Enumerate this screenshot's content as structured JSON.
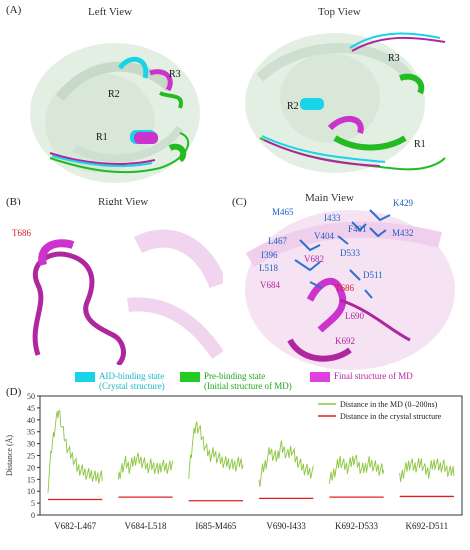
{
  "panels": {
    "A": {
      "letter": "(A)",
      "left_title": "Left View",
      "top_title": "Top View",
      "left_regions": [
        "R3",
        "R2",
        "R1"
      ],
      "top_regions": [
        "R3",
        "R2",
        "R1"
      ]
    },
    "B": {
      "letter": "(B)",
      "title": "Right View",
      "residue": "T686"
    },
    "C": {
      "letter": "(C)",
      "title": "Main View",
      "residues_blue": [
        "K429",
        "M465",
        "I433",
        "F401",
        "M432",
        "L467",
        "V404",
        "D533",
        "I396",
        "L518",
        "D511"
      ],
      "residues_magenta": [
        "V682",
        "V684",
        "L690",
        "K692"
      ],
      "residue_red": "T686"
    },
    "D": {
      "letter": "(D)"
    }
  },
  "legend": {
    "items": [
      {
        "label_line1": "AID-binding state",
        "label_line2": "(Crystal structure)",
        "color": "#19d3e6"
      },
      {
        "label_line1": "Pre-binding state",
        "label_line2": "(Initial structure of MD)",
        "color": "#22cc22"
      },
      {
        "label_line1": "Final structure of MD",
        "label_line2": "",
        "color": "#e040e0"
      }
    ]
  },
  "chart_data": {
    "type": "line",
    "ylabel": "Distance (Å)",
    "ylim": [
      0,
      50
    ],
    "yticks": [
      0,
      5,
      10,
      15,
      20,
      25,
      30,
      35,
      40,
      45,
      50
    ],
    "legend": {
      "placement": "top-right",
      "entries": [
        {
          "name": "Distance in the MD (0–200ns)",
          "color": "#8cc63f"
        },
        {
          "name": "Distance in the crystal structure",
          "color": "#e02020"
        }
      ]
    },
    "categories": [
      "V682-L467",
      "V684-L518",
      "I685-M465",
      "V690-I433",
      "K692-D533",
      "K692-D511"
    ],
    "series": [
      {
        "name": "Distance in the MD (0–200ns)",
        "values": [
          [
            12,
            28,
            38,
            44,
            36,
            30,
            26,
            24,
            20,
            19,
            18,
            17,
            17,
            16,
            16,
            16
          ],
          [
            14,
            20,
            22,
            20,
            22,
            24,
            23,
            22,
            20,
            21,
            20,
            19,
            21,
            20,
            20,
            21
          ],
          [
            17,
            30,
            38,
            36,
            31,
            27,
            25,
            26,
            24,
            23,
            22,
            22,
            21,
            21,
            22,
            22
          ],
          [
            13,
            19,
            22,
            27,
            25,
            24,
            29,
            27,
            25,
            28,
            24,
            22,
            20,
            19,
            18,
            18
          ],
          [
            14,
            17,
            20,
            23,
            21,
            20,
            22,
            24,
            21,
            19,
            20,
            22,
            21,
            20,
            19,
            19
          ],
          [
            15,
            18,
            20,
            22,
            20,
            21,
            22,
            19,
            18,
            21,
            22,
            20,
            21,
            19,
            18,
            19
          ]
        ]
      },
      {
        "name": "Distance in the crystal structure",
        "values": [
          6.5,
          7.5,
          6.0,
          7.0,
          7.5,
          7.8
        ]
      }
    ]
  }
}
